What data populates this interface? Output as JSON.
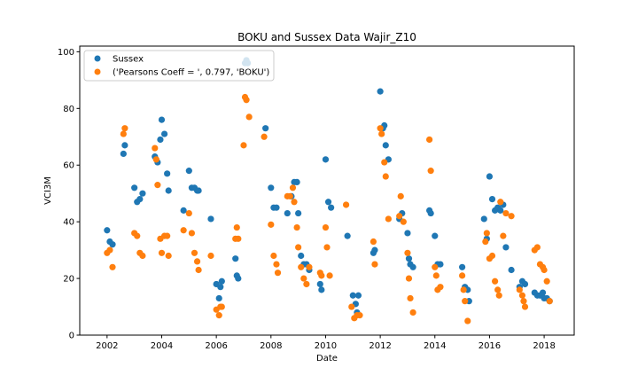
{
  "chart_data": {
    "type": "scatter",
    "title": "BOKU and Sussex Data Wajir_Z10",
    "xlabel": "Date",
    "ylabel": "VCI3M",
    "xlim": [
      2001.0,
      2019.1
    ],
    "ylim": [
      0,
      102
    ],
    "x_ticks": [
      "2002",
      "2004",
      "2006",
      "2008",
      "2010",
      "2012",
      "2014",
      "2016",
      "2018"
    ],
    "y_ticks": [
      "0",
      "20",
      "40",
      "60",
      "80",
      "100"
    ],
    "grid": false,
    "legend_position": "top-left",
    "series": [
      {
        "name": "Sussex",
        "color": "#1f77b4",
        "points": [
          [
            2002.0,
            37
          ],
          [
            2002.1,
            33
          ],
          [
            2002.2,
            32
          ],
          [
            2002.6,
            64
          ],
          [
            2002.65,
            67
          ],
          [
            2003.0,
            52
          ],
          [
            2003.1,
            47
          ],
          [
            2003.2,
            48
          ],
          [
            2003.3,
            50
          ],
          [
            2003.75,
            63
          ],
          [
            2003.85,
            61
          ],
          [
            2003.95,
            69
          ],
          [
            2004.0,
            76
          ],
          [
            2004.1,
            71
          ],
          [
            2004.2,
            57
          ],
          [
            2004.25,
            51
          ],
          [
            2004.8,
            44
          ],
          [
            2005.0,
            58
          ],
          [
            2005.1,
            52
          ],
          [
            2005.2,
            52
          ],
          [
            2005.3,
            51
          ],
          [
            2005.35,
            51
          ],
          [
            2005.8,
            41
          ],
          [
            2006.0,
            18
          ],
          [
            2006.1,
            13
          ],
          [
            2006.15,
            17
          ],
          [
            2006.2,
            19
          ],
          [
            2006.7,
            27
          ],
          [
            2006.75,
            21
          ],
          [
            2006.8,
            20
          ],
          [
            2007.05,
            96
          ],
          [
            2007.1,
            97
          ],
          [
            2007.15,
            96
          ],
          [
            2007.8,
            73
          ],
          [
            2008.0,
            52
          ],
          [
            2008.1,
            45
          ],
          [
            2008.2,
            45
          ],
          [
            2008.6,
            43
          ],
          [
            2008.75,
            49
          ],
          [
            2008.85,
            54
          ],
          [
            2008.95,
            54
          ],
          [
            2009.0,
            43
          ],
          [
            2009.1,
            28
          ],
          [
            2009.2,
            25
          ],
          [
            2009.3,
            25
          ],
          [
            2009.4,
            23
          ],
          [
            2009.8,
            18
          ],
          [
            2009.85,
            16
          ],
          [
            2010.0,
            62
          ],
          [
            2010.1,
            47
          ],
          [
            2010.2,
            45
          ],
          [
            2010.8,
            35
          ],
          [
            2011.0,
            14
          ],
          [
            2011.1,
            11
          ],
          [
            2011.15,
            8
          ],
          [
            2011.2,
            14
          ],
          [
            2011.75,
            29
          ],
          [
            2011.8,
            30
          ],
          [
            2012.0,
            86
          ],
          [
            2012.1,
            73
          ],
          [
            2012.15,
            74
          ],
          [
            2012.2,
            67
          ],
          [
            2012.3,
            62
          ],
          [
            2012.7,
            41
          ],
          [
            2012.8,
            43
          ],
          [
            2013.0,
            36
          ],
          [
            2013.05,
            27
          ],
          [
            2013.1,
            25
          ],
          [
            2013.2,
            24
          ],
          [
            2013.8,
            44
          ],
          [
            2013.85,
            43
          ],
          [
            2014.0,
            35
          ],
          [
            2014.1,
            25
          ],
          [
            2014.2,
            25
          ],
          [
            2015.0,
            24
          ],
          [
            2015.1,
            17
          ],
          [
            2015.2,
            16
          ],
          [
            2015.25,
            12
          ],
          [
            2015.8,
            41
          ],
          [
            2015.9,
            34
          ],
          [
            2016.0,
            56
          ],
          [
            2016.1,
            48
          ],
          [
            2016.2,
            44
          ],
          [
            2016.3,
            45
          ],
          [
            2016.4,
            44
          ],
          [
            2016.5,
            46
          ],
          [
            2016.6,
            31
          ],
          [
            2016.8,
            23
          ],
          [
            2017.1,
            17
          ],
          [
            2017.2,
            19
          ],
          [
            2017.3,
            18
          ],
          [
            2017.65,
            15
          ],
          [
            2017.75,
            14
          ],
          [
            2017.85,
            14
          ],
          [
            2017.95,
            15
          ],
          [
            2018.0,
            13
          ],
          [
            2018.1,
            13
          ],
          [
            2018.2,
            12
          ]
        ]
      },
      {
        "name": "('Pearsons Coeff = ', 0.797, 'BOKU')",
        "color": "#ff7f0e",
        "points": [
          [
            2002.0,
            29
          ],
          [
            2002.1,
            30
          ],
          [
            2002.2,
            24
          ],
          [
            2002.6,
            71
          ],
          [
            2002.65,
            73
          ],
          [
            2003.0,
            36
          ],
          [
            2003.1,
            35
          ],
          [
            2003.2,
            29
          ],
          [
            2003.3,
            28
          ],
          [
            2003.75,
            66
          ],
          [
            2003.8,
            62
          ],
          [
            2003.85,
            53
          ],
          [
            2003.95,
            34
          ],
          [
            2004.0,
            29
          ],
          [
            2004.1,
            35
          ],
          [
            2004.2,
            35
          ],
          [
            2004.25,
            28
          ],
          [
            2004.8,
            37
          ],
          [
            2005.0,
            43
          ],
          [
            2005.1,
            36
          ],
          [
            2005.2,
            29
          ],
          [
            2005.3,
            26
          ],
          [
            2005.35,
            23
          ],
          [
            2005.8,
            28
          ],
          [
            2006.0,
            9
          ],
          [
            2006.1,
            7
          ],
          [
            2006.15,
            10
          ],
          [
            2006.2,
            10
          ],
          [
            2006.7,
            34
          ],
          [
            2006.75,
            38
          ],
          [
            2006.8,
            34
          ],
          [
            2007.0,
            67
          ],
          [
            2007.05,
            84
          ],
          [
            2007.1,
            83
          ],
          [
            2007.2,
            77
          ],
          [
            2007.75,
            70
          ],
          [
            2008.0,
            39
          ],
          [
            2008.1,
            28
          ],
          [
            2008.2,
            25
          ],
          [
            2008.25,
            22
          ],
          [
            2008.6,
            49
          ],
          [
            2008.7,
            49
          ],
          [
            2008.8,
            52
          ],
          [
            2008.85,
            47
          ],
          [
            2008.95,
            38
          ],
          [
            2009.0,
            31
          ],
          [
            2009.1,
            24
          ],
          [
            2009.2,
            20
          ],
          [
            2009.3,
            18
          ],
          [
            2009.4,
            24
          ],
          [
            2009.8,
            22
          ],
          [
            2009.85,
            21
          ],
          [
            2010.0,
            38
          ],
          [
            2010.05,
            31
          ],
          [
            2010.15,
            21
          ],
          [
            2010.75,
            46
          ],
          [
            2010.95,
            10
          ],
          [
            2011.05,
            6
          ],
          [
            2011.15,
            7
          ],
          [
            2011.25,
            7
          ],
          [
            2011.75,
            33
          ],
          [
            2011.8,
            25
          ],
          [
            2012.0,
            73
          ],
          [
            2012.05,
            71
          ],
          [
            2012.15,
            61
          ],
          [
            2012.2,
            56
          ],
          [
            2012.3,
            41
          ],
          [
            2012.7,
            42
          ],
          [
            2012.75,
            49
          ],
          [
            2012.85,
            40
          ],
          [
            2013.0,
            29
          ],
          [
            2013.05,
            20
          ],
          [
            2013.1,
            13
          ],
          [
            2013.2,
            8
          ],
          [
            2013.8,
            69
          ],
          [
            2013.85,
            58
          ],
          [
            2014.0,
            24
          ],
          [
            2014.05,
            21
          ],
          [
            2014.1,
            16
          ],
          [
            2014.2,
            17
          ],
          [
            2015.0,
            21
          ],
          [
            2015.05,
            16
          ],
          [
            2015.1,
            12
          ],
          [
            2015.2,
            5
          ],
          [
            2015.85,
            33
          ],
          [
            2015.9,
            36
          ],
          [
            2016.0,
            27
          ],
          [
            2016.1,
            28
          ],
          [
            2016.2,
            19
          ],
          [
            2016.3,
            16
          ],
          [
            2016.35,
            14
          ],
          [
            2016.4,
            47
          ],
          [
            2016.5,
            35
          ],
          [
            2016.6,
            43
          ],
          [
            2016.8,
            42
          ],
          [
            2017.1,
            16
          ],
          [
            2017.2,
            14
          ],
          [
            2017.25,
            12
          ],
          [
            2017.3,
            10
          ],
          [
            2017.65,
            30
          ],
          [
            2017.75,
            31
          ],
          [
            2017.85,
            25
          ],
          [
            2017.95,
            24
          ],
          [
            2018.0,
            23
          ],
          [
            2018.1,
            19
          ],
          [
            2018.2,
            12
          ]
        ]
      }
    ]
  }
}
